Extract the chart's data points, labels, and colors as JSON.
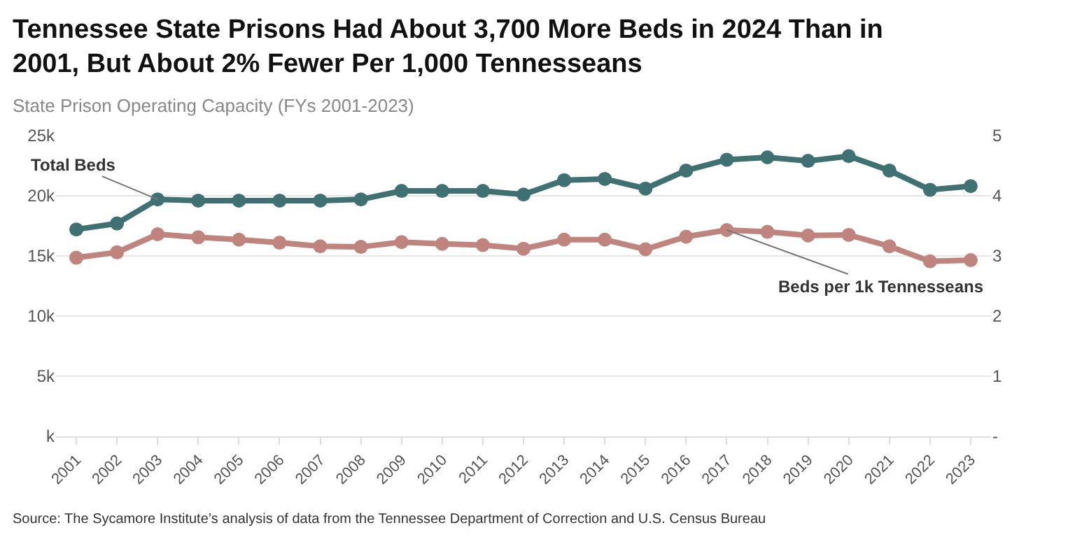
{
  "chart_data": {
    "type": "line",
    "title": "Tennessee State Prisons Had About 3,700 More Beds in 2024 Than in 2001, But About 2% Fewer Per 1,000 Tennesseans",
    "subtitle": "State Prison Operating Capacity (FYs 2001-2023)",
    "categories": [
      "2001",
      "2002",
      "2003",
      "2004",
      "2005",
      "2006",
      "2007",
      "2008",
      "2009",
      "2010",
      "2011",
      "2012",
      "2013",
      "2014",
      "2015",
      "2016",
      "2017",
      "2018",
      "2019",
      "2020",
      "2021",
      "2022",
      "2023"
    ],
    "series": [
      {
        "name": "Total Beds",
        "color": "#3f7072",
        "values": [
          17200,
          17700,
          19700,
          19600,
          19600,
          19600,
          19600,
          19700,
          20400,
          20400,
          20400,
          20100,
          21300,
          21400,
          20600,
          22100,
          23000,
          23200,
          22900,
          23300,
          22100,
          20500,
          20800
        ]
      },
      {
        "name": "Beds per 1k Tennesseans",
        "color": "#c0847e",
        "axis": "y2",
        "values": [
          2.97,
          3.06,
          3.36,
          3.31,
          3.27,
          3.22,
          3.16,
          3.15,
          3.23,
          3.2,
          3.18,
          3.12,
          3.27,
          3.27,
          3.11,
          3.32,
          3.43,
          3.4,
          3.34,
          3.35,
          3.16,
          2.91,
          2.93
        ]
      }
    ],
    "ylim": [
      0,
      25000
    ],
    "yticks": [
      {
        "value": 0,
        "label": "k"
      },
      {
        "value": 5000,
        "label": "5k"
      },
      {
        "value": 10000,
        "label": "10k"
      },
      {
        "value": 15000,
        "label": "15k"
      },
      {
        "value": 20000,
        "label": "20k"
      },
      {
        "value": 25000,
        "label": "25k"
      }
    ],
    "y2lim": [
      0,
      5
    ],
    "y2ticks": [
      {
        "value": 0,
        "label": "-"
      },
      1,
      2,
      3,
      4,
      5
    ],
    "annotations": [
      "Source: The Sycamore Institute’s analysis of data from the Tennessee Department of Correction and U.S. Census Bureau"
    ],
    "grid": "y",
    "legend": false,
    "marker": "circle",
    "line_style": "solid"
  }
}
